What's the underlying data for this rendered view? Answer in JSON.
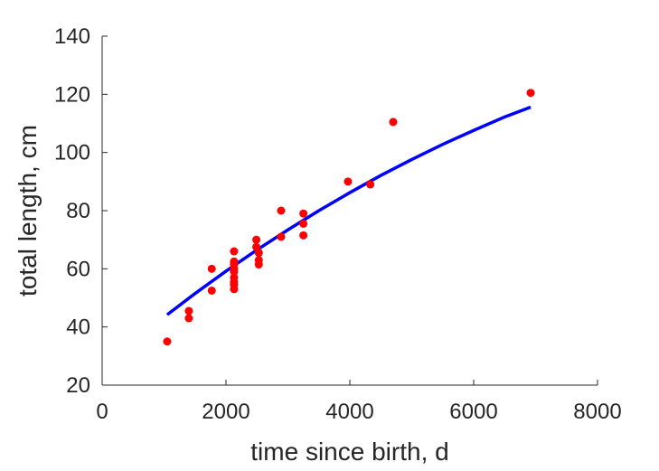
{
  "chart_data": {
    "type": "scatter",
    "title": "",
    "xlabel": "time since birth, d",
    "ylabel": "total length, cm",
    "xlim": [
      0,
      8000
    ],
    "ylim": [
      20,
      140
    ],
    "xticks": [
      0,
      2000,
      4000,
      6000,
      8000
    ],
    "yticks": [
      20,
      40,
      60,
      80,
      100,
      120,
      140
    ],
    "grid": false,
    "legend": "none",
    "colors": {
      "points": "#ff0000",
      "fit": "#0000ff",
      "axes": "#262626"
    },
    "points": [
      {
        "x": 1050,
        "y": 35
      },
      {
        "x": 1400,
        "y": 45.5
      },
      {
        "x": 1400,
        "y": 43
      },
      {
        "x": 1770,
        "y": 60
      },
      {
        "x": 1770,
        "y": 52.5
      },
      {
        "x": 2130,
        "y": 66
      },
      {
        "x": 2130,
        "y": 62.5
      },
      {
        "x": 2130,
        "y": 61.5
      },
      {
        "x": 2130,
        "y": 60
      },
      {
        "x": 2130,
        "y": 59
      },
      {
        "x": 2130,
        "y": 57
      },
      {
        "x": 2130,
        "y": 55.5
      },
      {
        "x": 2130,
        "y": 54.5
      },
      {
        "x": 2130,
        "y": 53
      },
      {
        "x": 2490,
        "y": 70
      },
      {
        "x": 2490,
        "y": 67.5
      },
      {
        "x": 2530,
        "y": 65.5
      },
      {
        "x": 2530,
        "y": 63
      },
      {
        "x": 2530,
        "y": 61.5
      },
      {
        "x": 2890,
        "y": 80
      },
      {
        "x": 2890,
        "y": 71
      },
      {
        "x": 3250,
        "y": 79
      },
      {
        "x": 3250,
        "y": 75.5
      },
      {
        "x": 3250,
        "y": 71.5
      },
      {
        "x": 3970,
        "y": 90
      },
      {
        "x": 4330,
        "y": 89
      },
      {
        "x": 4700,
        "y": 110.5
      },
      {
        "x": 6920,
        "y": 120.5
      }
    ],
    "fit_line": {
      "x": [
        1050,
        1500,
        2000,
        2500,
        3000,
        3500,
        4000,
        4500,
        5000,
        5500,
        6000,
        6500,
        6920
      ],
      "y": [
        44.2,
        51.5,
        59.2,
        66.5,
        73.4,
        80,
        86.2,
        92.1,
        97.6,
        102.8,
        107.6,
        112.2,
        115.6
      ]
    }
  }
}
